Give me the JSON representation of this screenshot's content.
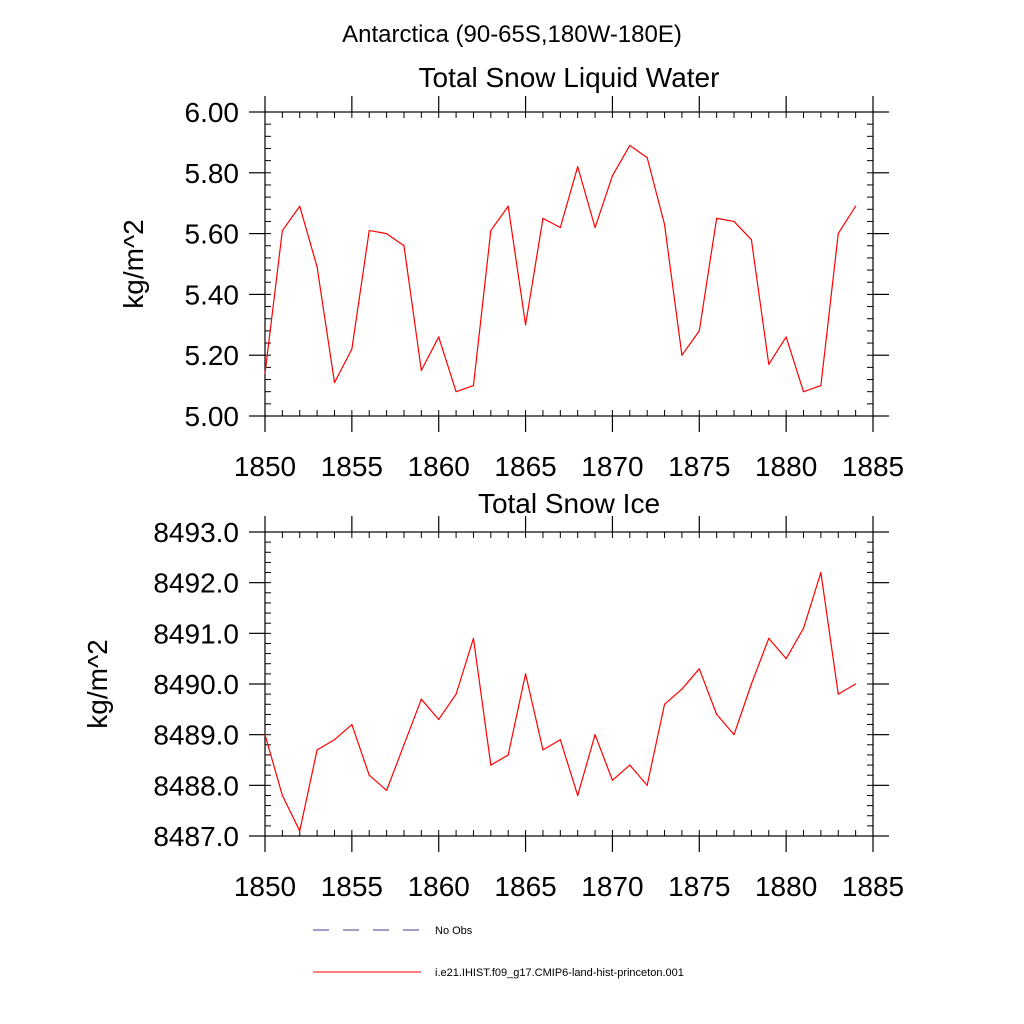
{
  "figure": {
    "region_title": "Antarctica (90-65S,180W-180E)"
  },
  "legend": {
    "items": [
      {
        "label": "No Obs",
        "style": "dashed",
        "color": "#3c3c8c"
      },
      {
        "label": "i.e21.IHIST.f09_g17.CMIP6-land-hist-princeton.001",
        "style": "solid",
        "color": "#ff0000"
      }
    ]
  },
  "chart_data": [
    {
      "type": "line",
      "title": "Total Snow Liquid Water",
      "xlabel": "",
      "ylabel": "kg/m^2",
      "xlim": [
        1850,
        1885
      ],
      "ylim": [
        5.0,
        6.0
      ],
      "x_ticks": [
        1850,
        1855,
        1860,
        1865,
        1870,
        1875,
        1880,
        1885
      ],
      "x_tick_labels": [
        "1850",
        "1855",
        "1860",
        "1865",
        "1870",
        "1875",
        "1880",
        "1885"
      ],
      "y_ticks": [
        5.0,
        5.2,
        5.4,
        5.6,
        5.8,
        6.0
      ],
      "y_tick_labels": [
        "5.00",
        "5.20",
        "5.40",
        "5.60",
        "5.80",
        "6.00"
      ],
      "x_minor_step": 1,
      "y_minor_step": 0.04,
      "grid": false,
      "series": [
        {
          "color": "#ff0000",
          "x": [
            1850,
            1851,
            1852,
            1853,
            1854,
            1855,
            1856,
            1857,
            1858,
            1859,
            1860,
            1861,
            1862,
            1863,
            1864,
            1865,
            1866,
            1867,
            1868,
            1869,
            1870,
            1871,
            1872,
            1873,
            1874,
            1875,
            1876,
            1877,
            1878,
            1879,
            1880,
            1881,
            1882,
            1883,
            1884
          ],
          "y": [
            5.14,
            5.61,
            5.69,
            5.49,
            5.11,
            5.22,
            5.61,
            5.6,
            5.56,
            5.15,
            5.26,
            5.08,
            5.1,
            5.61,
            5.69,
            5.3,
            5.65,
            5.62,
            5.82,
            5.62,
            5.79,
            5.89,
            5.85,
            5.63,
            5.2,
            5.28,
            5.65,
            5.64,
            5.58,
            5.17,
            5.26,
            5.08,
            5.1,
            5.6,
            5.69
          ]
        }
      ]
    },
    {
      "type": "line",
      "title": "Total Snow Ice",
      "xlabel": "",
      "ylabel": "kg/m^2",
      "xlim": [
        1850,
        1885
      ],
      "ylim": [
        8487.0,
        8493.0
      ],
      "x_ticks": [
        1850,
        1855,
        1860,
        1865,
        1870,
        1875,
        1880,
        1885
      ],
      "x_tick_labels": [
        "1850",
        "1855",
        "1860",
        "1865",
        "1870",
        "1875",
        "1880",
        "1885"
      ],
      "y_ticks": [
        8487.0,
        8488.0,
        8489.0,
        8490.0,
        8491.0,
        8492.0,
        8493.0
      ],
      "y_tick_labels": [
        "8487.0",
        "8488.0",
        "8489.0",
        "8490.0",
        "8491.0",
        "8492.0",
        "8493.0"
      ],
      "x_minor_step": 1,
      "y_minor_step": 0.2,
      "grid": false,
      "series": [
        {
          "color": "#ff0000",
          "x": [
            1850,
            1851,
            1852,
            1853,
            1854,
            1855,
            1856,
            1857,
            1858,
            1859,
            1860,
            1861,
            1862,
            1863,
            1864,
            1865,
            1866,
            1867,
            1868,
            1869,
            1870,
            1871,
            1872,
            1873,
            1874,
            1875,
            1876,
            1877,
            1878,
            1879,
            1880,
            1881,
            1882,
            1883,
            1884
          ],
          "y": [
            8489.0,
            8487.8,
            8487.1,
            8488.7,
            8488.9,
            8489.2,
            8488.2,
            8487.9,
            8488.8,
            8489.7,
            8489.3,
            8489.8,
            8490.9,
            8488.4,
            8488.6,
            8490.2,
            8488.7,
            8488.9,
            8487.8,
            8489.0,
            8488.1,
            8488.4,
            8488.0,
            8489.6,
            8489.9,
            8490.3,
            8489.4,
            8489.0,
            8490.0,
            8490.9,
            8490.5,
            8491.1,
            8492.2,
            8489.8,
            8490.0
          ]
        }
      ]
    }
  ]
}
